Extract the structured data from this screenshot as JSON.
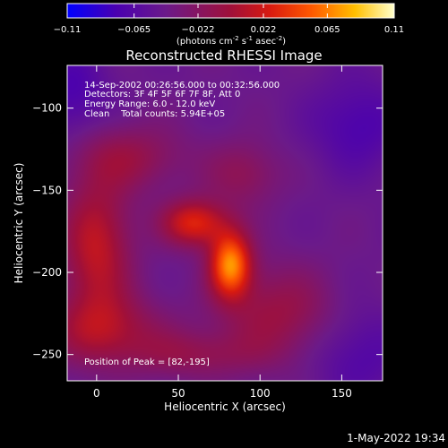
{
  "chart_data": {
    "type": "heatmap",
    "title": "Reconstructed RHESSI Image",
    "colorbar": {
      "ticks": [
        "-0.11",
        "-0.065",
        "-0.022",
        "0.022",
        "0.065",
        "0.11"
      ],
      "range": [
        -0.11,
        0.11
      ],
      "units_label": "(photons cm",
      "units_exp1": "-2",
      "units_mid": " s",
      "units_exp2": "-1",
      "units_mid2": " asec",
      "units_exp3": "-2",
      "units_end": ")"
    },
    "info_lines": [
      "14-Sep-2002 00:26:56.000 to 00:32:56.000",
      "Detectors: 3F 4F 5F 6F 7F 8F, Att 0",
      "Energy Range: 6.0 - 12.0 keV",
      "Clean    Total counts: 5.94E+05"
    ],
    "peak_label": "Position of Peak = [82,-195]",
    "peak": [
      82,
      -195
    ],
    "xlabel": "Heliocentric X (arcsec)",
    "ylabel": "Heliocentric Y (arcsec)",
    "xlim": [
      -18,
      175
    ],
    "ylim": [
      -266,
      -74
    ],
    "xticks": [
      {
        "value": 0,
        "label": "0"
      },
      {
        "value": 50,
        "label": "50"
      },
      {
        "value": 100,
        "label": "100"
      },
      {
        "value": 150,
        "label": "150"
      }
    ],
    "yticks": [
      {
        "value": -100,
        "label": "−100"
      },
      {
        "value": -150,
        "label": "−150"
      },
      {
        "value": -200,
        "label": "−200"
      },
      {
        "value": -250,
        "label": "−250"
      }
    ],
    "sources": [
      {
        "x": 82,
        "y": -195,
        "sx": 9,
        "sy": 14,
        "amp": 0.11
      },
      {
        "x": 60,
        "y": -170,
        "sx": 14,
        "sy": 10,
        "amp": 0.075
      },
      {
        "x": 20,
        "y": -130,
        "sx": 24,
        "sy": 14,
        "amp": 0.035
      },
      {
        "x": 0,
        "y": -185,
        "sx": 15,
        "sy": 30,
        "amp": 0.06
      },
      {
        "x": 90,
        "y": -140,
        "sx": 16,
        "sy": 14,
        "amp": 0.03
      },
      {
        "x": 5,
        "y": -235,
        "sx": 25,
        "sy": 15,
        "amp": 0.045
      },
      {
        "x": 110,
        "y": -225,
        "sx": 25,
        "sy": 20,
        "amp": 0.04
      },
      {
        "x": 60,
        "y": -250,
        "sx": 28,
        "sy": 10,
        "amp": 0.03
      },
      {
        "x": 160,
        "y": -110,
        "sx": 20,
        "sy": 20,
        "amp": -0.03
      },
      {
        "x": -15,
        "y": -90,
        "sx": 15,
        "sy": 20,
        "amp": -0.03
      },
      {
        "x": 160,
        "y": -250,
        "sx": 20,
        "sy": 20,
        "amp": -0.025
      }
    ]
  },
  "footer_timestamp": "1-May-2022 19:34"
}
